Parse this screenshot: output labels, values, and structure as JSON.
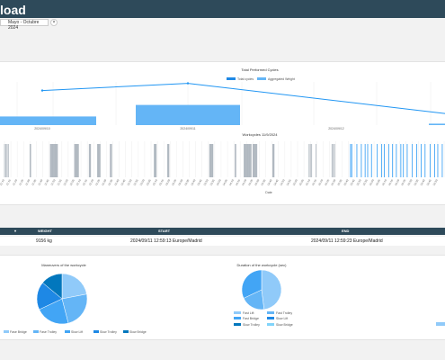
{
  "header": {
    "title": "load"
  },
  "filter": {
    "date_range": "Mayo - Octubre 2024"
  },
  "cycles_chart": {
    "title": "Total Performed Cycles",
    "legend": [
      "Total cycles",
      "Aggregated Weight"
    ],
    "dates": [
      "2024/09/10",
      "2024/09/11",
      "2024/09/12"
    ],
    "colors": {
      "bar": "#64b5f6",
      "line": "#2196f3",
      "legend_bar": "#1e88e5"
    }
  },
  "workcycles_chart": {
    "title": "Workcycles 11/9/2024",
    "xlabel": "Date",
    "tick_labels": [
      "11:10",
      "11:15",
      "11:20",
      "11:25",
      "11:30",
      "11:35",
      "11:40",
      "11:45",
      "11:50",
      "11:55",
      "12:00",
      "12:05",
      "12:10",
      "12:15",
      "12:20",
      "12:25",
      "12:30",
      "12:35",
      "12:40",
      "12:45",
      "12:50",
      "12:55",
      "13:00",
      "13:05",
      "13:10",
      "13:15",
      "13:20",
      "13:25",
      "13:30",
      "13:35",
      "13:40",
      "13:45",
      "13:50",
      "13:55",
      "14:00",
      "14:05",
      "14:10",
      "14:15",
      "14:20",
      "14:25",
      "14:30",
      "14:35",
      "14:40",
      "14:45",
      "14:50",
      "14:55",
      "15:00",
      "15:05",
      "15:10",
      "15:15",
      "15:20",
      "15:25",
      "15:30",
      "15:35",
      "15:40",
      "15:45",
      "15:50",
      "15:55",
      "16:00",
      "16:05",
      "16:10",
      "16:15",
      "16:20",
      "16:25",
      "16:30",
      "16:35",
      "16:40",
      "16:45",
      "16:50"
    ]
  },
  "table": {
    "columns": [
      "",
      "WEIGHT",
      "START",
      "END"
    ],
    "rows": [
      {
        "weight": "9156 kg",
        "start": "2024/09/11 12:59:13 Europe/Madrid",
        "end": "2024/09/11 12:59:23 Europe/Madrid"
      }
    ]
  },
  "pie1": {
    "title": "Maneuvers of the workcycle",
    "legend": [
      "Fase Bridge",
      "Fase Trolley",
      "Slow Lift",
      "Slow Trolley",
      "Slow Bridge"
    ],
    "colors": [
      "#90caf9",
      "#64b5f6",
      "#42a5f5",
      "#1e88e5",
      "#0277bd"
    ]
  },
  "pie2": {
    "title": "Duration of the workcycle (sec)",
    "legend": [
      "Fast Lift",
      "Fast Trolley",
      "Fast Bridge",
      "Slow Lift",
      "Slow Trolley",
      "Slow Bridge"
    ],
    "colors": [
      "#90caf9",
      "#64b5f6",
      "#42a5f5",
      "#1e88e5",
      "#0277bd",
      "#81d4fa"
    ]
  },
  "chart_data": [
    {
      "type": "bar",
      "title": "Total Performed Cycles",
      "categories": [
        "2024/09/10",
        "2024/09/11",
        "2024/09/12"
      ],
      "series": [
        {
          "name": "Total cycles",
          "type": "bar",
          "values": [
            12,
            28,
            2
          ]
        },
        {
          "name": "Aggregated Weight",
          "type": "line",
          "values": [
            48,
            58,
            16
          ]
        }
      ],
      "ylim": [
        0,
        60
      ]
    },
    {
      "type": "bar",
      "title": "Workcycles 11/9/2024",
      "xlabel": "Date",
      "x": [
        0,
        0.2,
        0.4,
        0.6,
        4.0,
        4.1,
        7.2,
        7.3,
        7.4,
        7.5,
        7.6,
        7.7,
        7.8,
        7.9,
        8.0,
        8.1,
        8.2,
        8.3,
        11.0,
        11.1,
        11.2,
        11.3,
        11.4,
        11.5,
        11.6,
        13.3,
        13.4,
        13.5,
        14.6,
        14.7,
        14.8,
        14.9,
        15.0,
        16.6,
        16.7,
        16.8,
        23.5,
        23.6,
        23.7,
        23.8,
        25.6,
        25.7,
        25.8,
        32.2,
        32.3,
        32.4,
        32.5,
        32.6,
        32.7,
        36.2,
        36.3,
        37.6,
        37.7,
        37.8,
        37.9,
        38.0,
        38.1,
        38.2,
        38.3,
        38.4,
        38.5,
        38.6,
        38.7,
        39.0,
        39.1,
        39.2,
        39.3,
        39.4,
        39.5,
        39.6,
        42.1,
        42.2,
        42.3,
        47.8,
        48.0,
        48.2,
        48.9,
        51.4,
        51.6,
        51.8,
        54.3,
        54.5,
        55.3,
        56.0,
        56.6,
        57.0,
        57.6,
        58.5,
        59.2,
        59.6,
        60.3,
        60.9,
        61.5,
        62.2,
        62.6,
        63.2,
        64.0,
        64.7,
        65.4,
        66.0,
        66.8,
        67.5,
        68.0,
        68.7
      ],
      "values_note": "unit bars"
    },
    {
      "type": "pie",
      "title": "Maneuvers of the workcycle",
      "categories": [
        "Fase Bridge",
        "Fase Trolley",
        "Slow Lift",
        "Slow Trolley",
        "Slow Bridge"
      ],
      "values": [
        22,
        24,
        22,
        18,
        14
      ]
    },
    {
      "type": "pie",
      "title": "Duration of the workcycle (sec)",
      "categories": [
        "Fast Lift",
        "Fast Trolley",
        "Fast Bridge",
        "Slow Lift",
        "Slow Trolley",
        "Slow Bridge"
      ],
      "values": [
        48,
        20,
        32,
        0,
        0,
        0
      ]
    }
  ]
}
